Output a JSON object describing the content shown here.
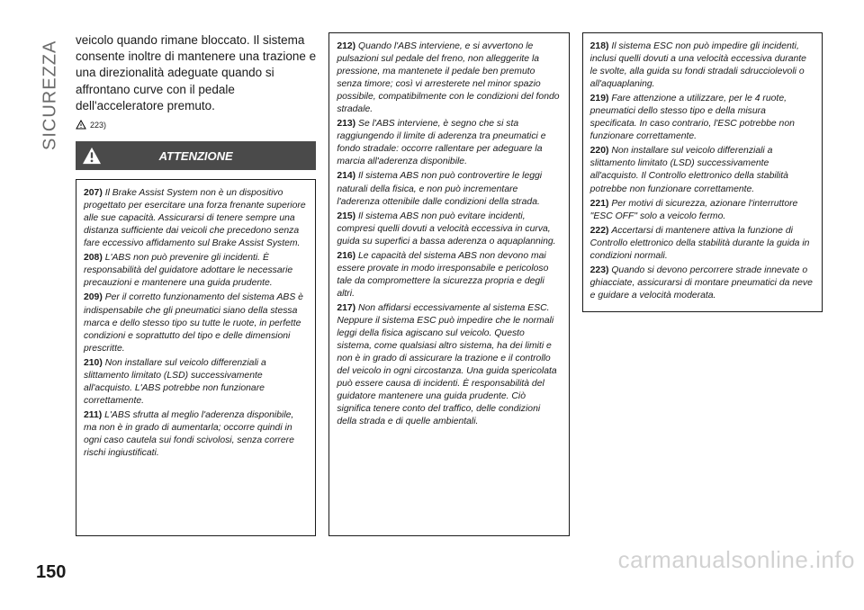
{
  "page_number": "150",
  "side_tab": "SICUREZZA",
  "watermark": "carmanualsonline.info",
  "intro": "veicolo quando rimane bloccato. Il sistema consente inoltre di mantenere una trazione e una direzionalità adeguate quando si affrontano curve con il pedale dell'acceleratore premuto.",
  "intro_ref": "223)",
  "attention_label": "ATTENZIONE",
  "notes": {
    "col1": [
      {
        "n": "207)",
        "t": "Il Brake Assist System non è un dispositivo progettato per esercitare una forza frenante superiore alle sue capacità. Assicurarsi di tenere sempre una distanza sufficiente dai veicoli che precedono senza fare eccessivo affidamento sul Brake Assist System."
      },
      {
        "n": "208)",
        "t": "L'ABS non può prevenire gli incidenti. È responsabilità del guidatore adottare le necessarie precauzioni e mantenere una guida prudente."
      },
      {
        "n": "209)",
        "t": "Per il corretto funzionamento del sistema ABS è indispensabile che gli pneumatici siano della stessa marca e dello stesso tipo su tutte le ruote, in perfette condizioni e soprattutto del tipo e delle dimensioni prescritte."
      },
      {
        "n": "210)",
        "t": "Non installare sul veicolo differenziali a slittamento limitato (LSD) successivamente all'acquisto. L'ABS potrebbe non funzionare correttamente."
      },
      {
        "n": "211)",
        "t": "L'ABS sfrutta al meglio l'aderenza disponibile, ma non è in grado di aumentarla; occorre quindi in ogni caso cautela sui fondi scivolosi, senza correre rischi ingiustificati."
      }
    ],
    "col2": [
      {
        "n": "212)",
        "t": "Quando l'ABS interviene, e si avvertono le pulsazioni sul pedale del freno, non alleggerite la pressione, ma mantenete il pedale ben premuto senza timore; così vi arresterete nel minor spazio possibile, compatibilmente con le condizioni del fondo stradale."
      },
      {
        "n": "213)",
        "t": "Se l'ABS interviene, è segno che si sta raggiungendo il limite di aderenza tra pneumatici e fondo stradale: occorre rallentare per adeguare la marcia all'aderenza disponibile."
      },
      {
        "n": "214)",
        "t": "Il sistema ABS non può controvertire le leggi naturali della fisica, e non può incrementare l'aderenza ottenibile dalle condizioni della strada."
      },
      {
        "n": "215)",
        "t": "Il sistema ABS non può evitare incidenti, compresi quelli dovuti a velocità eccessiva in curva, guida su superfici a bassa aderenza o aquaplanning."
      },
      {
        "n": "216)",
        "t": "Le capacità del sistema ABS non devono mai essere provate in modo irresponsabile e pericoloso tale da compromettere la sicurezza propria e degli altri."
      },
      {
        "n": "217)",
        "t": "Non affidarsi eccessivamente al sistema ESC. Neppure il sistema ESC può impedire che le normali leggi della fisica agiscano sul veicolo. Questo sistema, come qualsiasi altro sistema, ha dei limiti e non è in grado di assicurare la trazione e il controllo del veicolo in ogni circostanza. Una guida spericolata può essere causa di incidenti. È responsabilità del guidatore mantenere una guida prudente. Ciò significa tenere conto del traffico, delle condizioni della strada e di quelle ambientali."
      }
    ],
    "col3": [
      {
        "n": "218)",
        "t": "Il sistema ESC non può impedire gli incidenti, inclusi quelli dovuti a una velocità eccessiva durante le svolte, alla guida su fondi stradali sdrucciolevoli o all'aquaplaning."
      },
      {
        "n": "219)",
        "t": "Fare attenzione a utilizzare, per le 4 ruote, pneumatici dello stesso tipo e della misura specificata. In caso contrario, l'ESC potrebbe non funzionare correttamente."
      },
      {
        "n": "220)",
        "t": "Non installare sul veicolo differenziali a slittamento limitato (LSD) successivamente all'acquisto. Il Controllo elettronico della stabilità potrebbe non funzionare correttamente."
      },
      {
        "n": "221)",
        "t": "Per motivi di sicurezza, azionare l'interruttore \"ESC OFF\" solo a veicolo fermo."
      },
      {
        "n": "222)",
        "t": "Accertarsi di mantenere attiva la funzione di Controllo elettronico della stabilità durante la guida in condizioni normali."
      },
      {
        "n": "223)",
        "t": "Quando si devono percorrere strade innevate o ghiacciate, assicurarsi di montare pneumatici da neve e guidare a velocità moderata."
      }
    ]
  },
  "colors": {
    "bg": "#ffffff",
    "text": "#1a1a1a",
    "header_bg": "#4a4a4a",
    "side_text": "#6b6b6b",
    "watermark": "rgba(0,0,0,0.18)"
  }
}
